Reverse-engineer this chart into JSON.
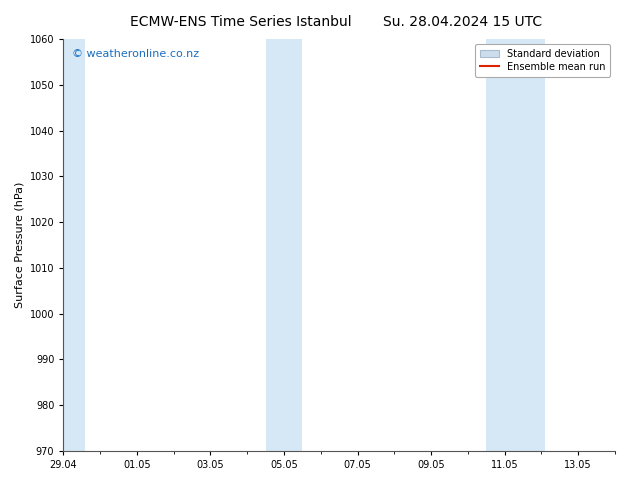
{
  "title_left": "ECMW-ENS Time Series Istanbul",
  "title_right": "Su. 28.04.2024 15 UTC",
  "ylabel": "Surface Pressure (hPa)",
  "ylim": [
    970,
    1060
  ],
  "yticks": [
    970,
    980,
    990,
    1000,
    1010,
    1020,
    1030,
    1040,
    1050,
    1060
  ],
  "xlim": [
    0,
    15
  ],
  "xtick_labels": [
    "29.04",
    "01.05",
    "03.05",
    "05.05",
    "07.05",
    "09.05",
    "11.05",
    "13.05"
  ],
  "xtick_positions_days": [
    0,
    2,
    4,
    6,
    8,
    10,
    12,
    14
  ],
  "shaded_bands": [
    {
      "x_start_days": -0.1,
      "x_end_days": 0.6
    },
    {
      "x_start_days": 5.5,
      "x_end_days": 6.5
    },
    {
      "x_start_days": 11.5,
      "x_end_days": 13.1
    }
  ],
  "shade_color": "#d6e8f5",
  "bg_color": "#ffffff",
  "watermark_text": "© weatheronline.co.nz",
  "watermark_color": "#1a6ec0",
  "legend_std_color": "#ccdded",
  "legend_std_edge": "#aabbcc",
  "legend_mean_color": "#dd2200",
  "title_fontsize": 10,
  "axis_fontsize": 7,
  "ylabel_fontsize": 8,
  "watermark_fontsize": 8,
  "legend_fontsize": 7
}
